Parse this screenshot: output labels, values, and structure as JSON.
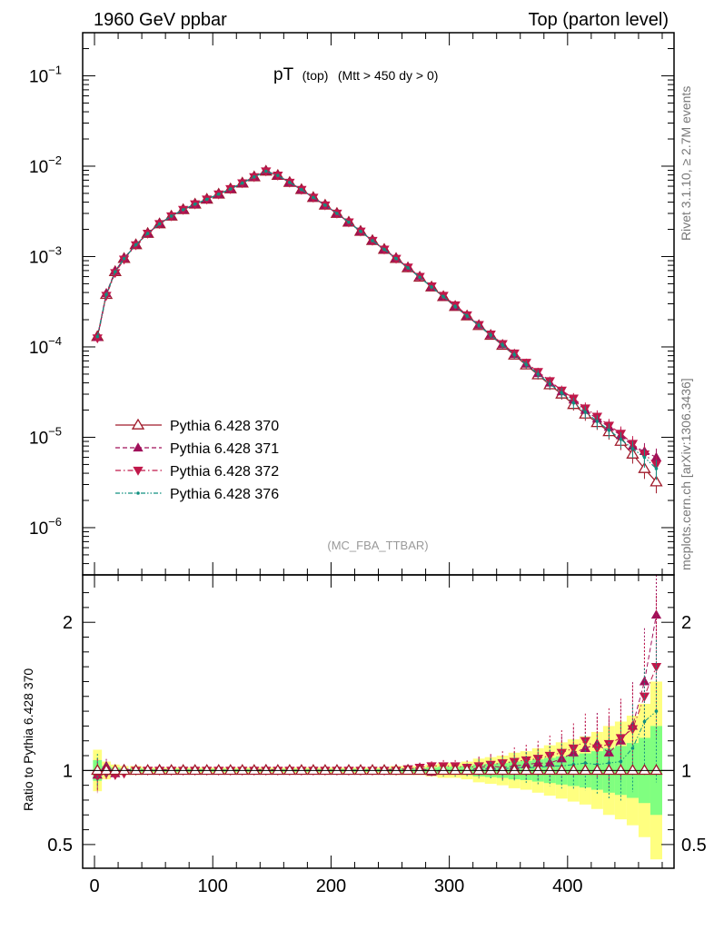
{
  "header": {
    "left": "1960 GeV ppbar",
    "right": "Top (parton level)"
  },
  "plot_title": {
    "main": "pT",
    "sub1": "(top)",
    "sub2": "(Mtt > 450 dy > 0)"
  },
  "side_labels": {
    "rivet": "Rivet 3.1.10, ≥ 2.7M events",
    "mcplots": "mcplots.cern.ch [arXiv:1306.3436]"
  },
  "analysis_tag": "(MC_FBA_TTBAR)",
  "ratio_ylabel": "Ratio to Pythia 6.428 370",
  "colors": {
    "s370": "#a01a2a",
    "s371": "#a0105a",
    "s372": "#c0184a",
    "s376": "#109080",
    "band_yellow": "#ffff80",
    "band_green": "#80ff80"
  },
  "chart_data": [
    {
      "type": "line",
      "panel": "main",
      "yscale": "log",
      "xlim": [
        -10,
        490
      ],
      "ylim": [
        3e-07,
        0.3
      ],
      "y_ticks": [
        {
          "value": 1e-06,
          "base": "10",
          "exp": "−6"
        },
        {
          "value": 1e-05,
          "base": "10",
          "exp": "−5"
        },
        {
          "value": 0.0001,
          "base": "10",
          "exp": "−4"
        },
        {
          "value": 0.001,
          "base": "10",
          "exp": "−3"
        },
        {
          "value": 0.01,
          "base": "10",
          "exp": "−2"
        },
        {
          "value": 0.1,
          "base": "10",
          "exp": "−1"
        }
      ],
      "legend_position": "bottom-left",
      "x": [
        2.5,
        10,
        17.5,
        25,
        35,
        45,
        55,
        65,
        75,
        85,
        95,
        105,
        115,
        125,
        135,
        145,
        155,
        165,
        175,
        185,
        195,
        205,
        215,
        225,
        235,
        245,
        255,
        265,
        275,
        285,
        295,
        305,
        315,
        325,
        335,
        345,
        355,
        365,
        375,
        385,
        395,
        405,
        415,
        425,
        435,
        445,
        455,
        465,
        475
      ],
      "series": [
        {
          "name": "Pythia 6.428 370",
          "marker": "open-triangle-up",
          "dash": "solid",
          "values": [
            0.00013,
            0.00038,
            0.00068,
            0.00095,
            0.00135,
            0.0018,
            0.0023,
            0.0028,
            0.0033,
            0.0038,
            0.0043,
            0.0049,
            0.0056,
            0.0065,
            0.0076,
            0.0088,
            0.0079,
            0.0066,
            0.0055,
            0.0045,
            0.0037,
            0.003,
            0.0024,
            0.0019,
            0.0015,
            0.0012,
            0.00095,
            0.00075,
            0.00059,
            0.00046,
            0.00036,
            0.00028,
            0.00022,
            0.000172,
            0.000134,
            0.000104,
            8.1e-05,
            6.3e-05,
            4.9e-05,
            3.8e-05,
            3e-05,
            2.3e-05,
            1.8e-05,
            1.45e-05,
            1.15e-05,
            9e-06,
            6.5e-06,
            4.5e-06,
            3.2e-06
          ]
        },
        {
          "name": "Pythia 6.428 371",
          "marker": "filled-triangle-up",
          "dash": "dashed",
          "values": [
            0.000128,
            0.00039,
            0.00069,
            0.00096,
            0.00136,
            0.0018,
            0.00232,
            0.0028,
            0.0033,
            0.0038,
            0.0043,
            0.0049,
            0.0056,
            0.0065,
            0.0076,
            0.0089,
            0.0079,
            0.0066,
            0.0055,
            0.0045,
            0.0037,
            0.003,
            0.0024,
            0.0019,
            0.0015,
            0.0012,
            0.00096,
            0.00076,
            0.0006,
            0.00046,
            0.00036,
            0.00028,
            0.00022,
            0.000175,
            0.000136,
            0.000106,
            8.3e-05,
            6.5e-05,
            5.1e-05,
            4e-05,
            3.2e-05,
            2.6e-05,
            2e-05,
            1.6e-05,
            1.3e-05,
            1.05e-05,
            8e-06,
            7e-06,
            6e-06
          ]
        },
        {
          "name": "Pythia 6.428 372",
          "marker": "filled-triangle-down",
          "dash": "dashdot",
          "values": [
            0.000125,
            0.00037,
            0.00066,
            0.00093,
            0.00134,
            0.0018,
            0.0023,
            0.0028,
            0.0033,
            0.0038,
            0.0043,
            0.0049,
            0.0056,
            0.0065,
            0.0076,
            0.0088,
            0.0079,
            0.0066,
            0.0055,
            0.0045,
            0.0037,
            0.003,
            0.0024,
            0.0019,
            0.0015,
            0.0012,
            0.00095,
            0.00076,
            0.0006,
            0.00047,
            0.00037,
            0.00029,
            0.000225,
            0.000176,
            0.000138,
            0.000108,
            8.5e-05,
            6.7e-05,
            5.3e-05,
            4.2e-05,
            3.3e-05,
            2.7e-05,
            2.1e-05,
            1.7e-05,
            1.35e-05,
            1.1e-05,
            8.5e-06,
            6.5e-06,
            5e-06
          ]
        },
        {
          "name": "Pythia 6.428 376",
          "marker": "small-dot",
          "dash": "dashdotdot",
          "values": [
            0.00013,
            0.00038,
            0.00068,
            0.00095,
            0.00135,
            0.0018,
            0.0023,
            0.0028,
            0.0033,
            0.0038,
            0.0043,
            0.0049,
            0.0056,
            0.0065,
            0.0076,
            0.0088,
            0.0079,
            0.0066,
            0.0055,
            0.0045,
            0.0037,
            0.003,
            0.0024,
            0.0019,
            0.0015,
            0.0012,
            0.00095,
            0.00075,
            0.00059,
            0.00046,
            0.00036,
            0.00028,
            0.00022,
            0.000173,
            0.000135,
            0.000105,
            8.2e-05,
            6.4e-05,
            5e-05,
            3.9e-05,
            3.1e-05,
            2.4e-05,
            1.9e-05,
            1.5e-05,
            1.2e-05,
            9.5e-06,
            7.5e-06,
            6e-06,
            4.5e-06
          ]
        }
      ]
    },
    {
      "type": "line",
      "panel": "ratio",
      "ylabel": "Ratio to Pythia 6.428 370",
      "xlim": [
        -10,
        490
      ],
      "ylim": [
        0.34,
        2.32
      ],
      "x_ticks": [
        0,
        100,
        200,
        300,
        400
      ],
      "y_ticks": [
        0.5,
        1,
        2
      ],
      "x": [
        2.5,
        10,
        17.5,
        25,
        35,
        45,
        55,
        65,
        75,
        85,
        95,
        105,
        115,
        125,
        135,
        145,
        155,
        165,
        175,
        185,
        195,
        205,
        215,
        225,
        235,
        245,
        255,
        265,
        275,
        285,
        295,
        305,
        315,
        325,
        335,
        345,
        355,
        365,
        375,
        385,
        395,
        405,
        415,
        425,
        435,
        445,
        455,
        465,
        475
      ],
      "band_yellow": [
        0.14,
        0.06,
        0.04,
        0.03,
        0.03,
        0.02,
        0.02,
        0.02,
        0.02,
        0.02,
        0.02,
        0.02,
        0.02,
        0.02,
        0.02,
        0.02,
        0.02,
        0.02,
        0.02,
        0.02,
        0.02,
        0.02,
        0.02,
        0.02,
        0.02,
        0.02,
        0.03,
        0.03,
        0.03,
        0.04,
        0.05,
        0.05,
        0.06,
        0.08,
        0.09,
        0.1,
        0.12,
        0.13,
        0.15,
        0.17,
        0.19,
        0.21,
        0.23,
        0.26,
        0.3,
        0.33,
        0.37,
        0.45,
        0.6
      ],
      "band_green": [
        0.07,
        0.03,
        0.02,
        0.015,
        0.015,
        0.01,
        0.01,
        0.01,
        0.01,
        0.01,
        0.01,
        0.01,
        0.01,
        0.01,
        0.01,
        0.01,
        0.01,
        0.01,
        0.01,
        0.01,
        0.01,
        0.01,
        0.01,
        0.01,
        0.01,
        0.01,
        0.015,
        0.015,
        0.015,
        0.02,
        0.025,
        0.025,
        0.03,
        0.04,
        0.045,
        0.05,
        0.06,
        0.065,
        0.075,
        0.085,
        0.095,
        0.105,
        0.115,
        0.13,
        0.15,
        0.165,
        0.185,
        0.22,
        0.3
      ],
      "series": [
        {
          "name": "Pythia 6.428 371",
          "values": [
            0.97,
            1.03,
            0.98,
            1.01,
            1.0,
            1.0,
            1.01,
            1.0,
            1.0,
            1.0,
            1.0,
            1.0,
            1.0,
            1.0,
            1.0,
            1.01,
            1.0,
            1.0,
            1.0,
            1.0,
            1.0,
            1.0,
            1.0,
            1.0,
            1.0,
            1.0,
            1.01,
            1.01,
            1.02,
            0.99,
            1.0,
            1.0,
            1.0,
            1.02,
            1.03,
            1.02,
            1.03,
            1.04,
            1.05,
            1.05,
            1.08,
            1.12,
            1.15,
            1.18,
            1.12,
            1.2,
            1.3,
            1.6,
            2.05
          ]
        },
        {
          "name": "Pythia 6.428 372",
          "values": [
            0.96,
            0.98,
            0.97,
            0.98,
            1.0,
            1.0,
            1.0,
            1.0,
            1.0,
            1.0,
            1.0,
            1.0,
            1.0,
            1.0,
            1.0,
            1.0,
            1.0,
            1.0,
            1.0,
            1.0,
            1.0,
            1.0,
            1.0,
            1.0,
            1.0,
            1.0,
            1.0,
            1.01,
            1.02,
            1.03,
            1.03,
            1.03,
            1.02,
            1.03,
            1.04,
            1.05,
            1.06,
            1.07,
            1.08,
            1.1,
            1.12,
            1.15,
            1.2,
            1.15,
            1.18,
            1.22,
            1.28,
            1.5,
            1.7
          ]
        },
        {
          "name": "Pythia 6.428 376",
          "values": [
            1.0,
            1.0,
            1.0,
            1.0,
            1.0,
            1.0,
            1.0,
            1.0,
            1.0,
            1.0,
            1.0,
            1.0,
            1.0,
            1.0,
            1.0,
            1.0,
            1.0,
            1.0,
            1.0,
            1.0,
            1.0,
            1.0,
            1.0,
            1.0,
            1.0,
            1.0,
            1.0,
            1.0,
            1.0,
            1.0,
            1.0,
            1.0,
            1.0,
            1.01,
            1.01,
            1.01,
            1.02,
            1.02,
            1.02,
            1.03,
            1.03,
            1.04,
            1.05,
            1.04,
            1.05,
            1.06,
            1.15,
            1.33,
            1.4
          ]
        }
      ]
    }
  ]
}
